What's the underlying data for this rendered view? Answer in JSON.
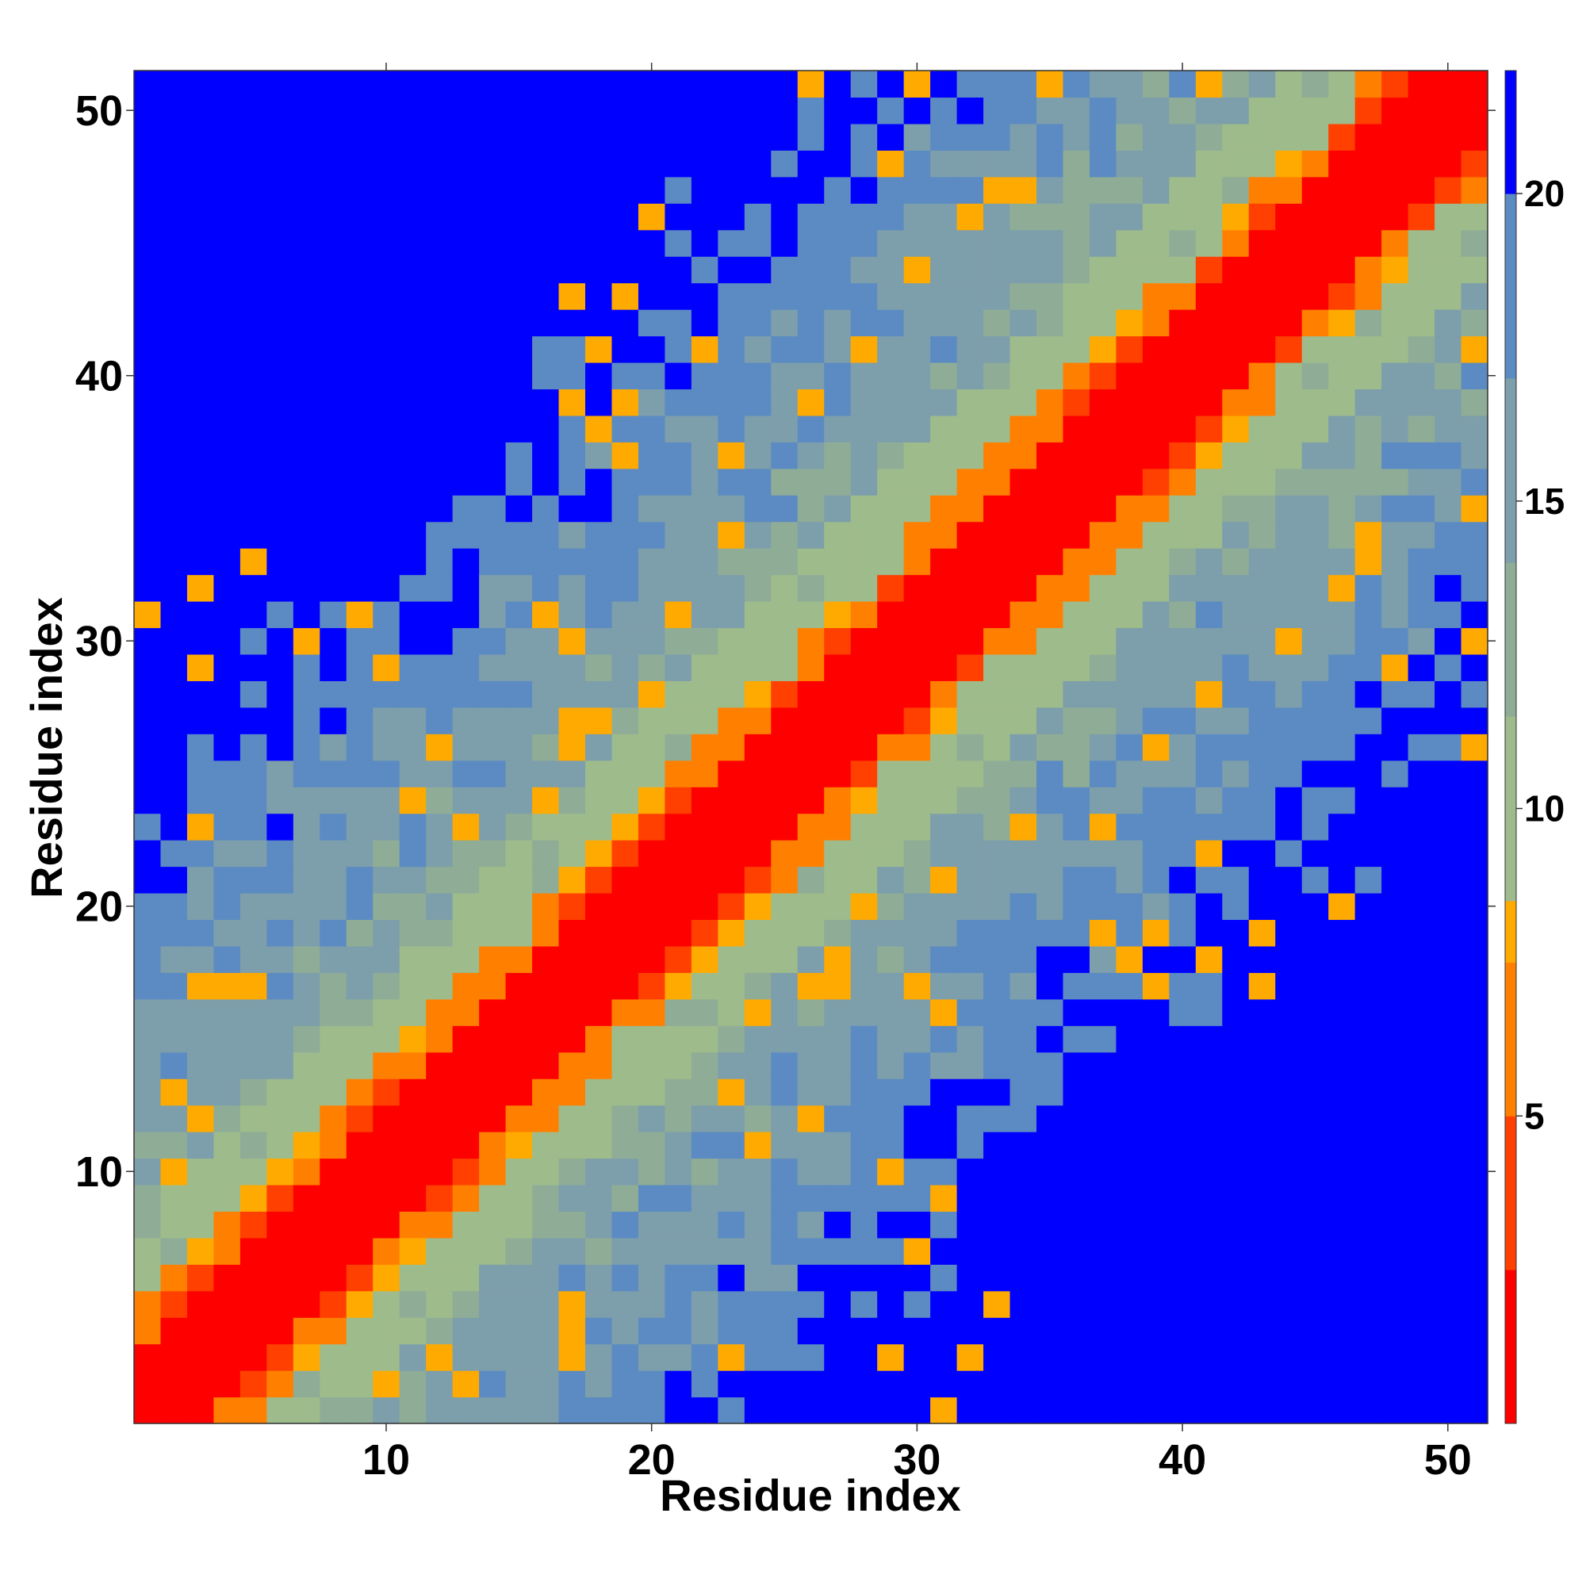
{
  "chart_data": {
    "type": "heatmap",
    "title": "",
    "xlabel": "Residue index",
    "ylabel": "Residue index",
    "x_range": [
      1,
      51
    ],
    "y_range": [
      1,
      51
    ],
    "x_ticks": [
      10,
      20,
      30,
      40,
      50
    ],
    "y_ticks": [
      10,
      20,
      30,
      40,
      50
    ],
    "colorbar": {
      "ticks": [
        5,
        10,
        15,
        20
      ],
      "range": [
        0,
        22
      ],
      "bands": [
        {
          "min": 0,
          "max": 2.5,
          "color": "#ff0000"
        },
        {
          "min": 2.5,
          "max": 5,
          "color": "#ff4000"
        },
        {
          "min": 5,
          "max": 7.5,
          "color": "#ff8000"
        },
        {
          "min": 7.5,
          "max": 8.5,
          "color": "#ffaa00"
        },
        {
          "min": 8.5,
          "max": 11.5,
          "color": "#9ebb8c"
        },
        {
          "min": 11.5,
          "max": 14,
          "color": "#8fad96"
        },
        {
          "min": 14,
          "max": 17,
          "color": "#7d9eab"
        },
        {
          "min": 17,
          "max": 20,
          "color": "#5b8bc2"
        },
        {
          "min": 20,
          "max": 22,
          "color": "#0000ff"
        }
      ]
    },
    "cell_values_note": "",
    "grid": false,
    "legend": "colorbar-right"
  }
}
